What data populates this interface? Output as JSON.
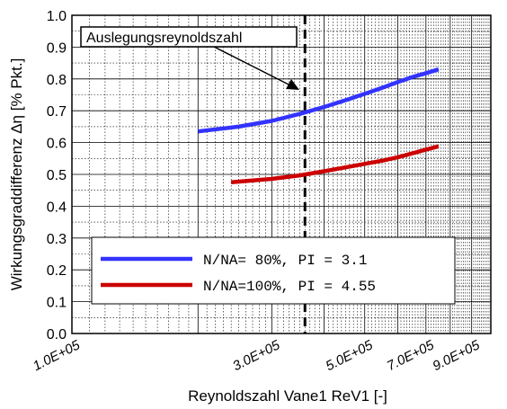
{
  "chart_data": {
    "type": "line",
    "xlabel": "Reynoldszahl Vane1  ReV1 [-]",
    "ylabel": "Wirkungsgraddifferenz Δη [% Pkt.]",
    "xscale": "log",
    "xlim": [
      100000,
      1000000
    ],
    "ylim": [
      0,
      1
    ],
    "yticks": [
      0.0,
      0.1,
      0.2,
      0.3,
      0.4,
      0.5,
      0.6,
      0.7,
      0.8,
      0.9,
      1.0
    ],
    "ytick_labels": [
      "0.0",
      "0.1",
      "0.2",
      "0.3",
      "0.4",
      "0.5",
      "0.6",
      "0.7",
      "0.8",
      "0.9",
      "1.0"
    ],
    "xticks": [
      100000,
      300000,
      500000,
      700000,
      900000
    ],
    "xtick_labels": [
      "1.0E+05",
      "3.0E+05",
      "5.0E+05",
      "7.0E+05",
      "9.0E+05"
    ],
    "grid": true,
    "legend_position": "bottom-right",
    "series": [
      {
        "name": "N/NA= 80%, PI = 3.1",
        "color": "#3333ff",
        "x": [
          200000,
          250000,
          300000,
          350000,
          400000,
          450000,
          500000,
          550000,
          600000,
          650000,
          700000,
          750000
        ],
        "y": [
          0.635,
          0.65,
          0.668,
          0.69,
          0.712,
          0.733,
          0.753,
          0.772,
          0.79,
          0.806,
          0.818,
          0.83
        ]
      },
      {
        "name": "N/NA=100%, PI = 4.55",
        "color": "#cc0000",
        "x": [
          240000,
          300000,
          350000,
          400000,
          450000,
          500000,
          550000,
          600000,
          650000,
          700000,
          750000
        ],
        "y": [
          0.475,
          0.486,
          0.497,
          0.51,
          0.522,
          0.533,
          0.543,
          0.554,
          0.566,
          0.578,
          0.588
        ]
      }
    ],
    "design_line": {
      "x": 360000,
      "color": "#000000",
      "style": "dashed"
    },
    "annotation": {
      "text": "Auslegungsreynoldszahl"
    }
  }
}
